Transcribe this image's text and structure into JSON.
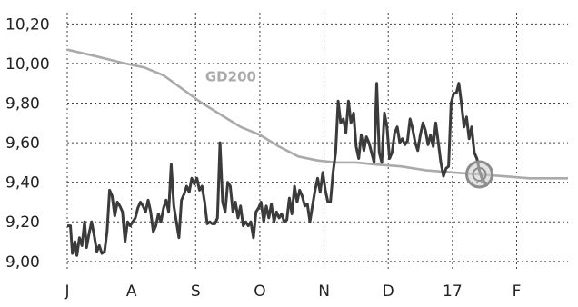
{
  "chart_data": {
    "type": "line",
    "title": "",
    "xlabel": "",
    "ylabel": "",
    "x_tick_labels": [
      "J",
      "A",
      "S",
      "O",
      "N",
      "D",
      "17",
      "F"
    ],
    "y_tick_labels": [
      "9,00",
      "9,20",
      "9,40",
      "9,60",
      "9,80",
      "10,00",
      "10,20"
    ],
    "y_ticks": [
      9.0,
      9.2,
      9.4,
      9.6,
      9.8,
      10.0,
      10.2
    ],
    "ylim": [
      8.99,
      10.22
    ],
    "xlim": [
      0,
      7.8
    ],
    "grid": true,
    "legend": "none",
    "colors": {
      "price": "#3b3b3b",
      "gd200": "#aaaaaa",
      "marker": "#8c8c8c",
      "grid": "#444444"
    },
    "series": [
      {
        "name": "",
        "values": [
          [
            0.0,
            9.18
          ],
          [
            0.05,
            9.18
          ],
          [
            0.08,
            9.04
          ],
          [
            0.12,
            9.1
          ],
          [
            0.15,
            9.03
          ],
          [
            0.19,
            9.12
          ],
          [
            0.23,
            9.08
          ],
          [
            0.27,
            9.2
          ],
          [
            0.3,
            9.07
          ],
          [
            0.34,
            9.14
          ],
          [
            0.38,
            9.2
          ],
          [
            0.42,
            9.13
          ],
          [
            0.46,
            9.05
          ],
          [
            0.5,
            9.08
          ],
          [
            0.54,
            9.04
          ],
          [
            0.58,
            9.05
          ],
          [
            0.62,
            9.15
          ],
          [
            0.66,
            9.36
          ],
          [
            0.7,
            9.33
          ],
          [
            0.74,
            9.23
          ],
          [
            0.78,
            9.3
          ],
          [
            0.82,
            9.28
          ],
          [
            0.86,
            9.25
          ],
          [
            0.9,
            9.1
          ],
          [
            0.94,
            9.2
          ],
          [
            0.98,
            9.18
          ],
          [
            1.02,
            9.2
          ],
          [
            1.06,
            9.22
          ],
          [
            1.1,
            9.27
          ],
          [
            1.14,
            9.3
          ],
          [
            1.18,
            9.28
          ],
          [
            1.22,
            9.25
          ],
          [
            1.26,
            9.31
          ],
          [
            1.3,
            9.25
          ],
          [
            1.34,
            9.15
          ],
          [
            1.38,
            9.18
          ],
          [
            1.42,
            9.24
          ],
          [
            1.46,
            9.2
          ],
          [
            1.5,
            9.27
          ],
          [
            1.54,
            9.31
          ],
          [
            1.58,
            9.25
          ],
          [
            1.62,
            9.49
          ],
          [
            1.66,
            9.28
          ],
          [
            1.7,
            9.2
          ],
          [
            1.74,
            9.12
          ],
          [
            1.78,
            9.31
          ],
          [
            1.82,
            9.34
          ],
          [
            1.86,
            9.38
          ],
          [
            1.9,
            9.35
          ],
          [
            1.94,
            9.42
          ],
          [
            1.98,
            9.39
          ],
          [
            2.02,
            9.42
          ],
          [
            2.06,
            9.36
          ],
          [
            2.1,
            9.38
          ],
          [
            2.14,
            9.3
          ],
          [
            2.18,
            9.19
          ],
          [
            2.22,
            9.2
          ],
          [
            2.26,
            9.19
          ],
          [
            2.3,
            9.19
          ],
          [
            2.34,
            9.22
          ],
          [
            2.38,
            9.6
          ],
          [
            2.42,
            9.3
          ],
          [
            2.46,
            9.25
          ],
          [
            2.5,
            9.4
          ],
          [
            2.54,
            9.38
          ],
          [
            2.58,
            9.25
          ],
          [
            2.62,
            9.3
          ],
          [
            2.66,
            9.22
          ],
          [
            2.7,
            9.28
          ],
          [
            2.74,
            9.18
          ],
          [
            2.78,
            9.2
          ],
          [
            2.82,
            9.18
          ],
          [
            2.86,
            9.2
          ],
          [
            2.9,
            9.12
          ],
          [
            2.94,
            9.25
          ],
          [
            2.98,
            9.27
          ],
          [
            3.02,
            9.3
          ],
          [
            3.06,
            9.2
          ],
          [
            3.1,
            9.28
          ],
          [
            3.14,
            9.22
          ],
          [
            3.18,
            9.29
          ],
          [
            3.22,
            9.2
          ],
          [
            3.26,
            9.25
          ],
          [
            3.3,
            9.22
          ],
          [
            3.34,
            9.24
          ],
          [
            3.38,
            9.2
          ],
          [
            3.42,
            9.21
          ],
          [
            3.46,
            9.32
          ],
          [
            3.5,
            9.24
          ],
          [
            3.54,
            9.38
          ],
          [
            3.58,
            9.3
          ],
          [
            3.62,
            9.36
          ],
          [
            3.66,
            9.33
          ],
          [
            3.7,
            9.28
          ],
          [
            3.74,
            9.29
          ],
          [
            3.78,
            9.2
          ],
          [
            3.82,
            9.28
          ],
          [
            3.86,
            9.36
          ],
          [
            3.9,
            9.42
          ],
          [
            3.94,
            9.35
          ],
          [
            3.98,
            9.45
          ],
          [
            4.02,
            9.36
          ],
          [
            4.06,
            9.3
          ],
          [
            4.1,
            9.3
          ],
          [
            4.14,
            9.45
          ],
          [
            4.18,
            9.55
          ],
          [
            4.22,
            9.81
          ],
          [
            4.26,
            9.7
          ],
          [
            4.3,
            9.72
          ],
          [
            4.34,
            9.65
          ],
          [
            4.38,
            9.81
          ],
          [
            4.42,
            9.7
          ],
          [
            4.46,
            9.75
          ],
          [
            4.5,
            9.58
          ],
          [
            4.54,
            9.52
          ],
          [
            4.58,
            9.64
          ],
          [
            4.62,
            9.56
          ],
          [
            4.66,
            9.63
          ],
          [
            4.7,
            9.6
          ],
          [
            4.74,
            9.55
          ],
          [
            4.78,
            9.5
          ],
          [
            4.82,
            9.9
          ],
          [
            4.86,
            9.55
          ],
          [
            4.9,
            9.5
          ],
          [
            4.94,
            9.75
          ],
          [
            4.98,
            9.68
          ],
          [
            5.02,
            9.52
          ],
          [
            5.06,
            9.55
          ],
          [
            5.1,
            9.65
          ],
          [
            5.14,
            9.68
          ],
          [
            5.18,
            9.6
          ],
          [
            5.22,
            9.62
          ],
          [
            5.26,
            9.59
          ],
          [
            5.3,
            9.61
          ],
          [
            5.34,
            9.72
          ],
          [
            5.38,
            9.67
          ],
          [
            5.42,
            9.6
          ],
          [
            5.46,
            9.56
          ],
          [
            5.5,
            9.64
          ],
          [
            5.54,
            9.7
          ],
          [
            5.58,
            9.66
          ],
          [
            5.62,
            9.59
          ],
          [
            5.66,
            9.64
          ],
          [
            5.7,
            9.58
          ],
          [
            5.74,
            9.7
          ],
          [
            5.78,
            9.6
          ],
          [
            5.82,
            9.5
          ],
          [
            5.86,
            9.43
          ],
          [
            5.9,
            9.47
          ],
          [
            5.94,
            9.48
          ],
          [
            5.98,
            9.8
          ],
          [
            6.02,
            9.85
          ],
          [
            6.06,
            9.85
          ],
          [
            6.1,
            9.9
          ],
          [
            6.14,
            9.8
          ],
          [
            6.18,
            9.68
          ],
          [
            6.22,
            9.73
          ],
          [
            6.26,
            9.62
          ],
          [
            6.3,
            9.68
          ],
          [
            6.34,
            9.55
          ],
          [
            6.38,
            9.52
          ],
          [
            6.42,
            9.46
          ],
          [
            6.46,
            9.42
          ],
          [
            6.5,
            9.4
          ],
          [
            6.54,
            9.38
          ]
        ]
      },
      {
        "name": "GD200",
        "values": [
          [
            0.0,
            10.07
          ],
          [
            0.4,
            10.04
          ],
          [
            0.9,
            10.0
          ],
          [
            1.2,
            9.98
          ],
          [
            1.5,
            9.94
          ],
          [
            1.8,
            9.87
          ],
          [
            2.1,
            9.8
          ],
          [
            2.4,
            9.74
          ],
          [
            2.7,
            9.68
          ],
          [
            3.0,
            9.64
          ],
          [
            3.3,
            9.58
          ],
          [
            3.6,
            9.53
          ],
          [
            3.9,
            9.51
          ],
          [
            4.2,
            9.5
          ],
          [
            4.5,
            9.5
          ],
          [
            4.8,
            9.49
          ],
          [
            5.2,
            9.48
          ],
          [
            5.6,
            9.46
          ],
          [
            6.0,
            9.45
          ],
          [
            6.4,
            9.44
          ],
          [
            6.8,
            9.43
          ],
          [
            7.2,
            9.42
          ],
          [
            7.8,
            9.42
          ]
        ]
      }
    ],
    "annotations": [
      {
        "type": "circle-marker",
        "x": 6.42,
        "y": 9.44
      }
    ]
  }
}
